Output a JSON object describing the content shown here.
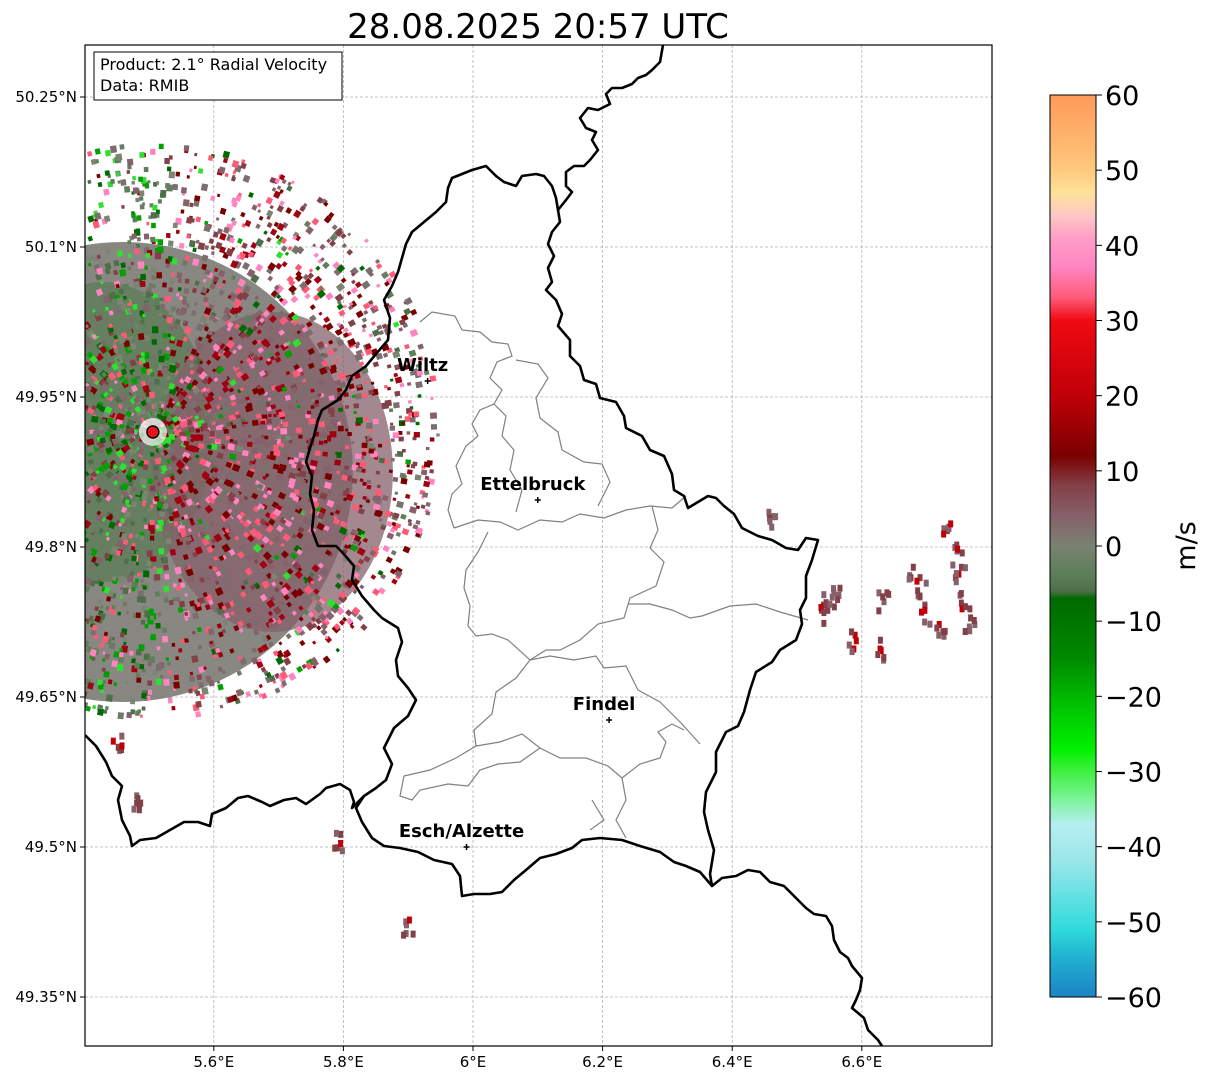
{
  "title": "28.08.2025 20:57 UTC",
  "info_box": {
    "product": "Product: 2.1° Radial Velocity",
    "data_source": "Data: RMIB"
  },
  "map": {
    "lon_range": [
      5.4,
      6.8
    ],
    "lat_range": [
      49.33,
      50.3
    ],
    "x_ticks": [
      {
        "value": 5.6,
        "label": "5.6°E"
      },
      {
        "value": 5.8,
        "label": "5.8°E"
      },
      {
        "value": 6.0,
        "label": "6°E"
      },
      {
        "value": 6.2,
        "label": "6.2°E"
      },
      {
        "value": 6.4,
        "label": "6.4°E"
      },
      {
        "value": 6.6,
        "label": "6.6°E"
      }
    ],
    "y_ticks": [
      {
        "value": 49.35,
        "label": "49.35°N"
      },
      {
        "value": 49.5,
        "label": "49.5°N"
      },
      {
        "value": 49.65,
        "label": "49.65°N"
      },
      {
        "value": 49.8,
        "label": "49.8°N"
      },
      {
        "value": 49.95,
        "label": "49.95°N"
      },
      {
        "value": 50.1,
        "label": "50.1°N"
      },
      {
        "value": 50.25,
        "label": "50.25°N"
      }
    ],
    "grid": true,
    "radar_site": {
      "lon": 5.506,
      "lat": 49.915,
      "color": "#e8141c"
    },
    "cities": [
      {
        "name": "Wiltz",
        "lon": 5.93,
        "lat": 49.966
      },
      {
        "name": "Ettelbruck",
        "lon": 6.1,
        "lat": 49.847
      },
      {
        "name": "Findel",
        "lon": 6.21,
        "lat": 49.627
      },
      {
        "name": "Esch/Alzette",
        "lon": 5.99,
        "lat": 49.5
      }
    ]
  },
  "colorbar": {
    "label": "m/s",
    "range": [
      -60,
      60
    ],
    "ticks": [
      {
        "value": 60,
        "label": "60"
      },
      {
        "value": 50,
        "label": "50"
      },
      {
        "value": 40,
        "label": "40"
      },
      {
        "value": 30,
        "label": "30"
      },
      {
        "value": 20,
        "label": "20"
      },
      {
        "value": 10,
        "label": "10"
      },
      {
        "value": 0,
        "label": "0"
      },
      {
        "value": -10,
        "label": "−10"
      },
      {
        "value": -20,
        "label": "−20"
      },
      {
        "value": -30,
        "label": "−30"
      },
      {
        "value": -40,
        "label": "−40"
      },
      {
        "value": -50,
        "label": "−50"
      },
      {
        "value": -60,
        "label": "−60"
      }
    ],
    "stops": [
      {
        "value": 60,
        "color": "#ff9a5a"
      },
      {
        "value": 54,
        "color": "#ffb56e"
      },
      {
        "value": 50,
        "color": "#ffc97e"
      },
      {
        "value": 47,
        "color": "#ffe29a"
      },
      {
        "value": 44,
        "color": "#ffc8c4"
      },
      {
        "value": 41,
        "color": "#ff9ec8"
      },
      {
        "value": 37,
        "color": "#ff84c0"
      },
      {
        "value": 33,
        "color": "#ff5a78"
      },
      {
        "value": 30,
        "color": "#f00a12"
      },
      {
        "value": 20,
        "color": "#c00008"
      },
      {
        "value": 12,
        "color": "#7a0000"
      },
      {
        "value": 8,
        "color": "#844048"
      },
      {
        "value": 4,
        "color": "#86606a"
      },
      {
        "value": 0,
        "color": "#7a8272"
      },
      {
        "value": -4,
        "color": "#5a7e56"
      },
      {
        "value": -6,
        "color": "#4e6e4a"
      },
      {
        "value": -7,
        "color": "#006a00"
      },
      {
        "value": -15,
        "color": "#008a00"
      },
      {
        "value": -22,
        "color": "#00c800"
      },
      {
        "value": -27,
        "color": "#00f000"
      },
      {
        "value": -30,
        "color": "#40f040"
      },
      {
        "value": -34,
        "color": "#80f4a0"
      },
      {
        "value": -37,
        "color": "#b6eef2"
      },
      {
        "value": -42,
        "color": "#9ae6e8"
      },
      {
        "value": -47,
        "color": "#5ee0e2"
      },
      {
        "value": -51,
        "color": "#30dada"
      },
      {
        "value": -55,
        "color": "#20aed0"
      },
      {
        "value": -60,
        "color": "#1c84c4"
      }
    ]
  }
}
